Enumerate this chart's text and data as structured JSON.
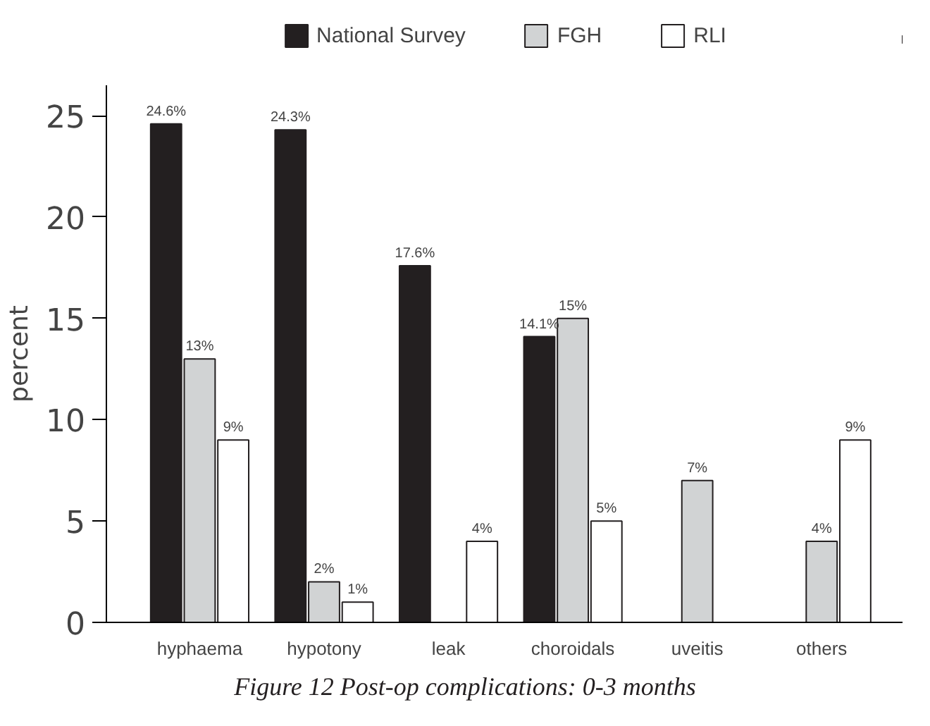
{
  "chart_data": {
    "type": "bar",
    "categories": [
      "hyphaema",
      "hypotony",
      "leak",
      "choroidals",
      "uveitis",
      "others"
    ],
    "series": [
      {
        "name": "National Survey",
        "color": "#231f20",
        "values": [
          24.6,
          24.3,
          17.6,
          14.1,
          null,
          null
        ],
        "value_labels": [
          "24.6%",
          "24.3%",
          "17.6%",
          "14.1%",
          null,
          null
        ]
      },
      {
        "name": "FGH",
        "color": "#d1d3d4",
        "values": [
          13,
          2,
          null,
          15,
          7,
          4
        ],
        "value_labels": [
          "13%",
          "2%",
          null,
          "15%",
          "7%",
          "4%"
        ]
      },
      {
        "name": "RLI",
        "color": "#ffffff",
        "values": [
          9,
          1,
          4,
          5,
          null,
          9
        ],
        "value_labels": [
          "9%",
          "1%",
          "4%",
          "5%",
          null,
          "9%"
        ]
      }
    ],
    "ylabel": "percent",
    "ylim": [
      0,
      26.5
    ],
    "yticks": [
      0,
      5,
      10,
      15,
      20,
      25
    ],
    "grid": false,
    "legend": "top",
    "annotations": [
      "Figure 12 Post-op complications: 0-3 months"
    ]
  }
}
